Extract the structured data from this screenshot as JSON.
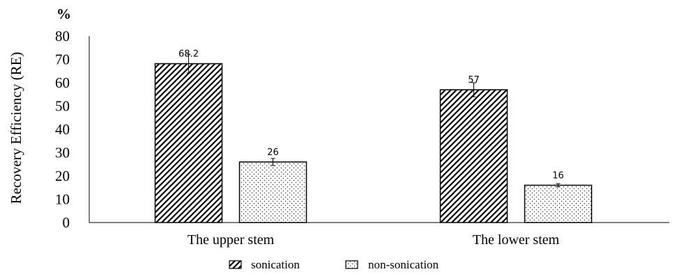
{
  "chart_data": {
    "type": "bar",
    "title": "",
    "unit": "%",
    "ylabel": "Recovery Efficiency (RE)",
    "xlabel": "",
    "categories": [
      "The upper stem",
      "The lower stem"
    ],
    "ylim": [
      0,
      80
    ],
    "yticks": [
      0,
      10,
      20,
      30,
      40,
      50,
      60,
      70,
      80
    ],
    "grid": false,
    "legend_position": "bottom",
    "series": [
      {
        "name": "sonication",
        "pattern": "diagonal-hatch",
        "values": [
          68.2,
          57
        ],
        "errors": [
          4,
          3
        ],
        "labels": [
          "68.2",
          "57"
        ]
      },
      {
        "name": "non-sonication",
        "pattern": "dots",
        "values": [
          26,
          16
        ],
        "errors": [
          1.5,
          0.7
        ],
        "labels": [
          "26",
          "16"
        ]
      }
    ]
  }
}
